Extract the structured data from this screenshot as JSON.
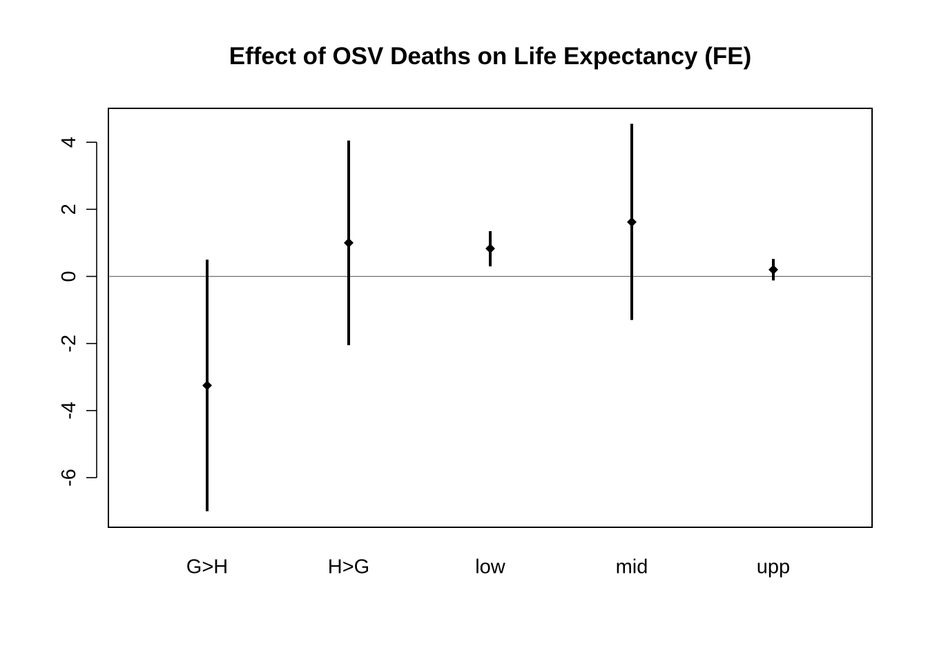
{
  "chart_data": {
    "type": "scatter",
    "title": "Effect of OSV Deaths on Life Expectancy (FE)",
    "xlabel": "",
    "ylabel": "",
    "categories": [
      "G>H",
      "H>G",
      "low",
      "mid",
      "upp"
    ],
    "series": [
      {
        "estimate": [
          -3.25,
          1.0,
          0.83,
          1.62,
          0.2
        ],
        "lower": [
          -7.0,
          -2.05,
          0.3,
          -1.3,
          -0.12
        ],
        "upper": [
          0.5,
          4.05,
          1.35,
          4.55,
          0.52
        ]
      }
    ],
    "y_ticks": [
      -6,
      -4,
      -2,
      0,
      2,
      4
    ],
    "y_tick_labels": [
      "-6",
      "-4",
      "-2",
      "0",
      "2",
      "4"
    ],
    "ylim": [
      -7.5,
      5.0
    ],
    "reference_line_y": 0,
    "grid": false,
    "legend": "none",
    "colors": {
      "marks": "#000000",
      "reference_line": "#6e6e6e",
      "frame": "#000000"
    }
  }
}
